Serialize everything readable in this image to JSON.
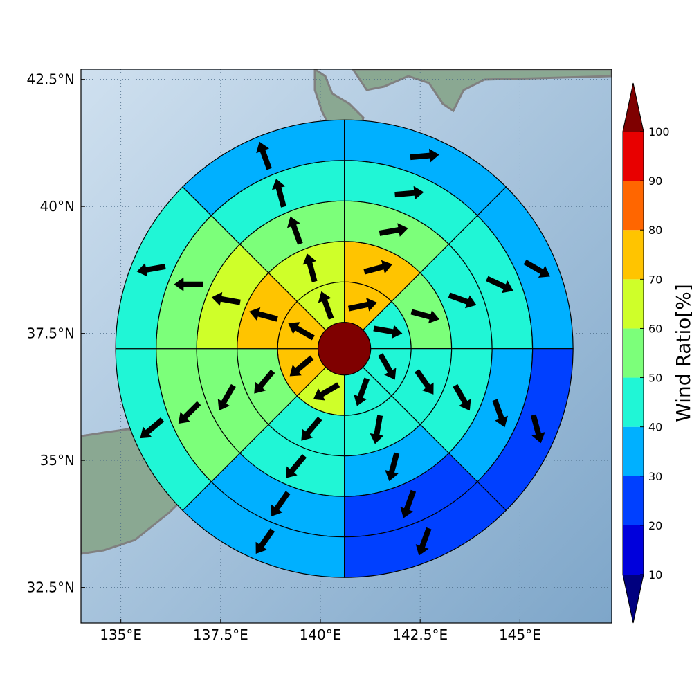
{
  "map": {
    "lon_range": [
      134,
      147.3
    ],
    "lat_range": [
      31.8,
      42.7
    ],
    "x_ticks": [
      {
        "value": 135,
        "label": "135°E"
      },
      {
        "value": 137.5,
        "label": "137.5°E"
      },
      {
        "value": 140,
        "label": "140°E"
      },
      {
        "value": 142.5,
        "label": "142.5°E"
      },
      {
        "value": 145,
        "label": "145°E"
      }
    ],
    "y_ticks": [
      {
        "value": 42.5,
        "label": "42.5°N"
      },
      {
        "value": 40,
        "label": "40°N"
      },
      {
        "value": 37.5,
        "label": "37.5°N"
      },
      {
        "value": 35,
        "label": "35°N"
      },
      {
        "value": 32.5,
        "label": "32.5°N"
      }
    ],
    "background_colors": [
      "#cfe0ef",
      "#7ea6c9"
    ],
    "land_color": "#8aa892",
    "coast_color": "#808080",
    "center": {
      "lon": 140.6,
      "lat": 37.2,
      "value": 100
    },
    "rings": 5,
    "sectors": 8,
    "rose_grid": [
      [
        70,
        40,
        40,
        40,
        60,
        70,
        70,
        60
      ],
      [
        70,
        50,
        40,
        40,
        40,
        50,
        70,
        60
      ],
      [
        50,
        40,
        40,
        30,
        40,
        50,
        60,
        50
      ],
      [
        40,
        40,
        30,
        20,
        30,
        50,
        50,
        40
      ],
      [
        30,
        30,
        20,
        20,
        30,
        40,
        40,
        30
      ]
    ],
    "arrow_angles": [
      [
        78,
        100,
        150,
        200,
        240,
        230,
        300,
        340
      ],
      [
        75,
        105,
        145,
        190,
        220,
        220,
        285,
        345
      ],
      [
        80,
        110,
        150,
        195,
        220,
        210,
        280,
        340
      ],
      [
        85,
        115,
        160,
        200,
        215,
        225,
        270,
        345
      ],
      [
        85,
        120,
        165,
        200,
        215,
        230,
        260,
        340
      ]
    ]
  },
  "colorbar": {
    "label": "Wind Ratio[%]",
    "ticks": [
      "10",
      "20",
      "30",
      "40",
      "50",
      "60",
      "70",
      "80",
      "90",
      "100"
    ],
    "colors": [
      "#00007f",
      "#0000dc",
      "#0040ff",
      "#00b0ff",
      "#20f6d6",
      "#7cff7a",
      "#cfff29",
      "#ffc400",
      "#ff6600",
      "#e80000",
      "#7f0000"
    ]
  }
}
